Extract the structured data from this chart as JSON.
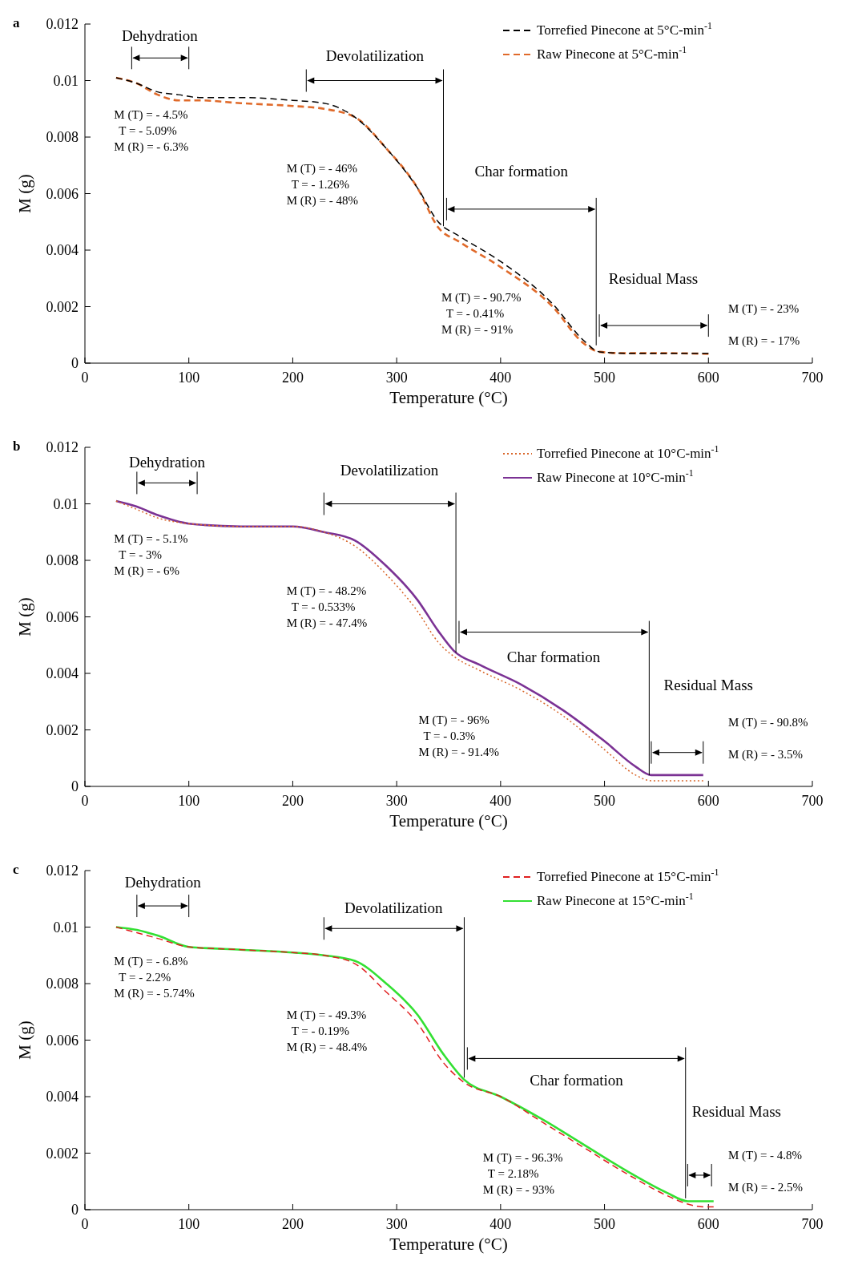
{
  "chart_data": [
    {
      "type": "line",
      "title": "a",
      "xlabel": "Temperature (°C)",
      "ylabel": "M (g)",
      "xlim": [
        0,
        700
      ],
      "xticks": [
        0,
        100,
        200,
        300,
        400,
        500,
        600,
        700
      ],
      "ylim": [
        0,
        0.012
      ],
      "yticks": [
        0,
        0.002,
        0.004,
        0.006,
        0.008,
        0.01,
        0.012
      ],
      "grid": false,
      "legend": "top right",
      "x": [
        30,
        50,
        70,
        90,
        110,
        150,
        200,
        230,
        260,
        290,
        320,
        340,
        360,
        400,
        450,
        480,
        495,
        520,
        560,
        600
      ],
      "series": [
        {
          "name": "Torrefied Pinecone at 5°C-min$^{-1}$",
          "color": "#000000",
          "line_style": "dashed",
          "values": [
            0.0101,
            0.0099,
            0.0096,
            0.0095,
            0.0094,
            0.0094,
            0.0093,
            0.0092,
            0.0087,
            0.0076,
            0.0062,
            0.005,
            0.0045,
            0.0036,
            0.0021,
            0.0008,
            0.0004,
            0.00035,
            0.00035,
            0.00035
          ]
        },
        {
          "name": "Raw Pinecone at 5°C-min$^{-1}$",
          "color": "#e06a2a",
          "line_style": "dashed",
          "values": [
            0.0101,
            0.0099,
            0.0095,
            0.0093,
            0.0093,
            0.0092,
            0.0091,
            0.009,
            0.0087,
            0.0076,
            0.0062,
            0.0048,
            0.0043,
            0.0034,
            0.002,
            0.0007,
            0.0004,
            0.00035,
            0.00035,
            0.00033
          ]
        }
      ],
      "annotations": [
        "Dehydration",
        "Devolatilization",
        "Char formation",
        "Residual  Mass",
        "M (T) = - 4.5%",
        "T = - 5.09%",
        "M (R) = - 6.3%",
        "M (T) = - 46%",
        "T = - 1.26%",
        "M (R) = - 48%",
        "M (T) = - 90.7%",
        "T = - 0.41%",
        "M (R) = - 91%",
        "M (T) = - 23%",
        "M (R) = - 17%"
      ]
    },
    {
      "type": "line",
      "title": "b",
      "xlabel": "Temperature (°C)",
      "ylabel": "M (g)",
      "xlim": [
        0,
        700
      ],
      "xticks": [
        0,
        100,
        200,
        300,
        400,
        500,
        600,
        700
      ],
      "ylim": [
        0,
        0.012
      ],
      "yticks": [
        0,
        0.002,
        0.004,
        0.006,
        0.008,
        0.01,
        0.012
      ],
      "grid": false,
      "legend": "top right",
      "x": [
        30,
        50,
        70,
        100,
        150,
        200,
        230,
        260,
        290,
        320,
        340,
        355,
        380,
        420,
        460,
        500,
        530,
        545,
        570,
        595
      ],
      "series": [
        {
          "name": "Torrefied Pinecone at 10°C-min$^{-1}$",
          "color": "#d9662a",
          "line_style": "dotted",
          "values": [
            0.0101,
            0.0098,
            0.0095,
            0.0093,
            0.0092,
            0.0092,
            0.009,
            0.0085,
            0.0075,
            0.0062,
            0.0051,
            0.0046,
            0.0041,
            0.0034,
            0.0025,
            0.0013,
            0.0004,
            0.0002,
            0.0002,
            0.0002
          ]
        },
        {
          "name": "Raw Pinecone at 10°C-min$^{-1}$",
          "color": "#7b3294",
          "line_style": "solid",
          "values": [
            0.0101,
            0.0099,
            0.0096,
            0.0093,
            0.0092,
            0.0092,
            0.009,
            0.0087,
            0.0078,
            0.0066,
            0.0055,
            0.0048,
            0.0043,
            0.0036,
            0.0027,
            0.0016,
            0.0007,
            0.0004,
            0.0004,
            0.0004
          ]
        }
      ],
      "annotations": [
        "Dehydration",
        "Devolatilization",
        "Char formation",
        "Residual  Mass",
        "M (T) = - 5.1%",
        "T = - 3%",
        "M (R) = - 6%",
        "M (T) = - 48.2%",
        "T = - 0.533%",
        "M (R) = - 47.4%",
        "M (T) = - 96%",
        "T = - 0.3%",
        "M (R) = - 91.4%",
        "M (T) = - 90.8%",
        "M (R) = - 3.5%"
      ]
    },
    {
      "type": "line",
      "title": "c",
      "xlabel": "Temperature (°C)",
      "ylabel": "M (g)",
      "xlim": [
        0,
        700
      ],
      "xticks": [
        0,
        100,
        200,
        300,
        400,
        500,
        600,
        700
      ],
      "ylim": [
        0,
        0.012
      ],
      "yticks": [
        0,
        0.002,
        0.004,
        0.006,
        0.008,
        0.01,
        0.012
      ],
      "grid": false,
      "legend": "top right",
      "x": [
        30,
        50,
        70,
        100,
        150,
        200,
        230,
        260,
        290,
        320,
        345,
        365,
        400,
        440,
        480,
        520,
        560,
        580,
        595,
        605
      ],
      "series": [
        {
          "name": "Torrefied Pinecone at 15°C-min$^{-1}$",
          "color": "#e02020",
          "line_style": "dashed",
          "values": [
            0.01,
            0.0098,
            0.0096,
            0.0093,
            0.0092,
            0.0091,
            0.009,
            0.0087,
            0.0077,
            0.0066,
            0.0052,
            0.0045,
            0.004,
            0.0031,
            0.0022,
            0.0013,
            0.0005,
            0.0002,
            0.0001,
            0.0001
          ]
        },
        {
          "name": "Raw Pinecone at 15°C-min$^{-1}$",
          "color": "#33e033",
          "line_style": "solid",
          "values": [
            0.01,
            0.0099,
            0.0097,
            0.0093,
            0.0092,
            0.0091,
            0.009,
            0.0088,
            0.008,
            0.0069,
            0.0055,
            0.0046,
            0.004,
            0.0032,
            0.0023,
            0.0014,
            0.0006,
            0.0003,
            0.0003,
            0.0003
          ]
        }
      ],
      "annotations": [
        "Dehydration",
        "Devolatilization",
        "Char formation",
        "Residual  Mass",
        "M (T) = - 6.8%",
        "T = - 2.2%",
        "M (R) = - 5.74%",
        "M (T) = - 49.3%",
        "T = - 0.19%",
        "M (R) = - 48.4%",
        "M (T) = - 96.3%",
        "T = 2.18%",
        "M (R) = - 93%",
        "M (T) = - 4.8%",
        "M (R) = - 2.5%"
      ]
    }
  ]
}
